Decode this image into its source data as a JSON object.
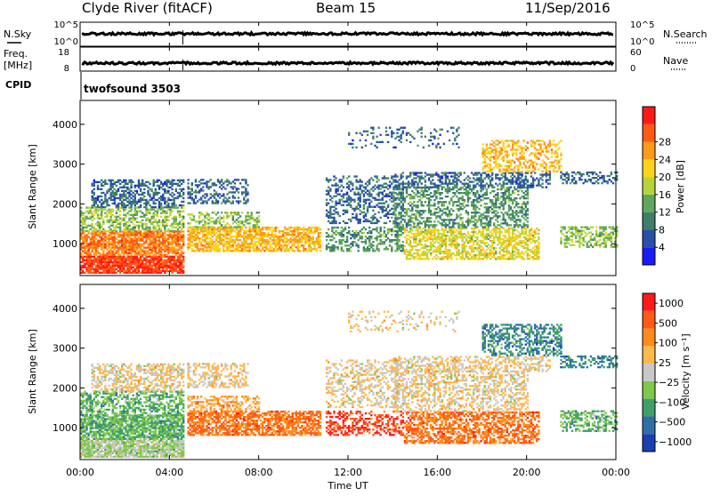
{
  "header": {
    "station": "Clyde River (fitACF)",
    "beam": "Beam 15",
    "date": "11/Sep/2016"
  },
  "colors": {
    "power": [
      "#1a1aff",
      "#2a4fa8",
      "#3f7f6a",
      "#5fa85a",
      "#b6d43a",
      "#ffd21a",
      "#ff9a1a",
      "#ff5a14",
      "#ff1a1a"
    ],
    "velocity": [
      "#ff1a1a",
      "#ff5a14",
      "#ff8c1a",
      "#ffb84a",
      "#c8c8c8",
      "#7fc84a",
      "#3f9f6a",
      "#2f6fa8",
      "#1a3fb0"
    ]
  },
  "chart_data": [
    {
      "type": "line",
      "name": "nsky-nsearch-panel",
      "left_label": "N.Sky",
      "right_label": "N.Search",
      "left_ticks": [
        "10^5",
        "10^0"
      ],
      "right_ticks": [
        "10^5",
        "10^0"
      ]
    },
    {
      "type": "line",
      "name": "freq-nave-panel",
      "left_label": "Freq.",
      "left_unit": "[MHz]",
      "right_label": "Nave",
      "left_ticks": [
        "18",
        "8"
      ],
      "right_ticks": [
        "60",
        "0"
      ]
    },
    {
      "type": "table",
      "name": "cpid-row",
      "label": "CPID",
      "value": "twofsound 3503"
    },
    {
      "type": "heatmap",
      "name": "power-panel",
      "ylabel": "Slant Range [km]",
      "yticks": [
        1000,
        2000,
        3000,
        4000
      ],
      "ylim": [
        200,
        4600
      ],
      "colorbar_label": "Power [dB]",
      "colorbar_ticks": [
        "4",
        "8",
        "12",
        "16",
        "20",
        "24",
        "28"
      ]
    },
    {
      "type": "heatmap",
      "name": "velocity-panel",
      "ylabel": "Slant Range [km]",
      "yticks": [
        1000,
        2000,
        3000,
        4000
      ],
      "ylim": [
        200,
        4600
      ],
      "colorbar_label": "Velocity [m s⁻¹]",
      "colorbar_ticks": [
        "1000",
        "500",
        "100",
        "25",
        "−25",
        "−100",
        "−500",
        "−1000"
      ]
    }
  ],
  "x_axis": {
    "label": "Time UT",
    "ticks": [
      "00:00",
      "04:00",
      "08:00",
      "12:00",
      "16:00",
      "20:00",
      "00:00"
    ],
    "range_hours": [
      0,
      24
    ]
  }
}
